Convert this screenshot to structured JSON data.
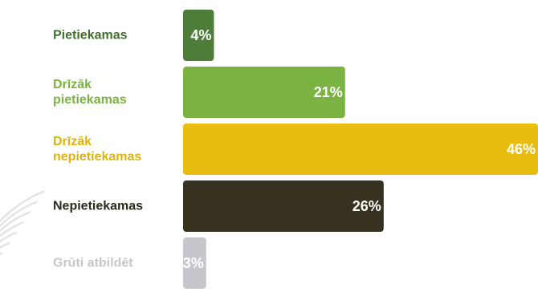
{
  "chart_data": {
    "type": "bar",
    "orientation": "horizontal",
    "title": "",
    "xlabel": "",
    "ylabel": "",
    "categories": [
      "Pietiekamas",
      "Drīzāk pietiekamas",
      "Drīzāk nepietiekamas",
      "Nepietiekamas",
      "Grūti atbildēt"
    ],
    "category_lines": [
      [
        "Pietiekamas"
      ],
      [
        "Drīzāk",
        "pietiekamas"
      ],
      [
        "Drīzāk",
        "nepietiekamas"
      ],
      [
        "Nepietiekamas"
      ],
      [
        "Grūti atbildēt"
      ]
    ],
    "values": [
      4,
      21,
      46,
      26,
      3
    ],
    "value_labels": [
      "4%",
      "21%",
      "46%",
      "26%",
      "3%"
    ],
    "unit": "%",
    "xlim": [
      0,
      46
    ],
    "grid": false,
    "legend": "none",
    "colors": [
      "#4e7d3a",
      "#7bb342",
      "#e9bd10",
      "#37321f",
      "#c6c6cc"
    ],
    "label_colors": [
      "#3f6e2e",
      "#7bb342",
      "#e0b30c",
      "#2b2a1c",
      "#c6c6cc"
    ]
  }
}
